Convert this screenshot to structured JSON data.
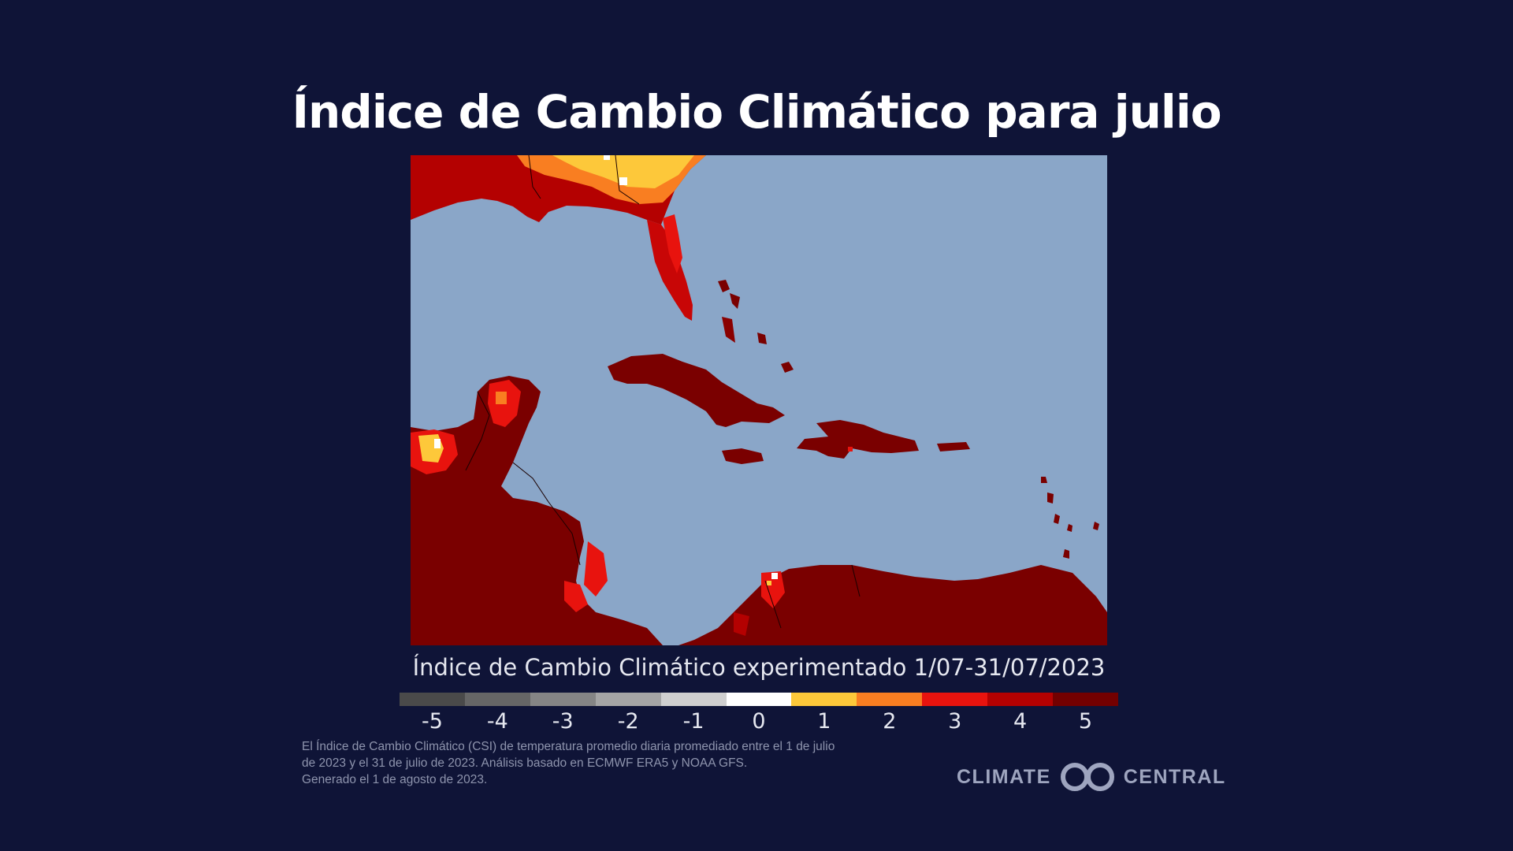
{
  "header": {
    "title": "Índice de Cambio Climático para julio"
  },
  "map": {
    "subtitle": "Índice de Cambio Climático experimentado 1/07-31/07/2023",
    "ocean_color": "#8aa6c8",
    "land_color": "#7a0000"
  },
  "legend": {
    "items": [
      {
        "value": "-5",
        "color": "#4a4a4a"
      },
      {
        "value": "-4",
        "color": "#666666"
      },
      {
        "value": "-3",
        "color": "#858585"
      },
      {
        "value": "-2",
        "color": "#a5a5a5"
      },
      {
        "value": "-1",
        "color": "#cfcfcf"
      },
      {
        "value": "0",
        "color": "#ffffff"
      },
      {
        "value": "1",
        "color": "#fdc83a"
      },
      {
        "value": "2",
        "color": "#f97e21"
      },
      {
        "value": "3",
        "color": "#e8130e"
      },
      {
        "value": "4",
        "color": "#b40101"
      },
      {
        "value": "5",
        "color": "#730000"
      }
    ]
  },
  "footnote": {
    "lines": [
      "El Índice de Cambio Climático (CSI) de temperatura promedio diaria promediado entre el 1 de julio",
      "de 2023 y el 31 de julio de 2023. Análisis basado en ECMWF ERA5 y NOAA GFS.",
      "Generado el 1 de agosto de 2023."
    ]
  },
  "brand": {
    "left": "CLIMATE",
    "right": "CENTRAL",
    "icon": "climate-central-logo-icon"
  }
}
